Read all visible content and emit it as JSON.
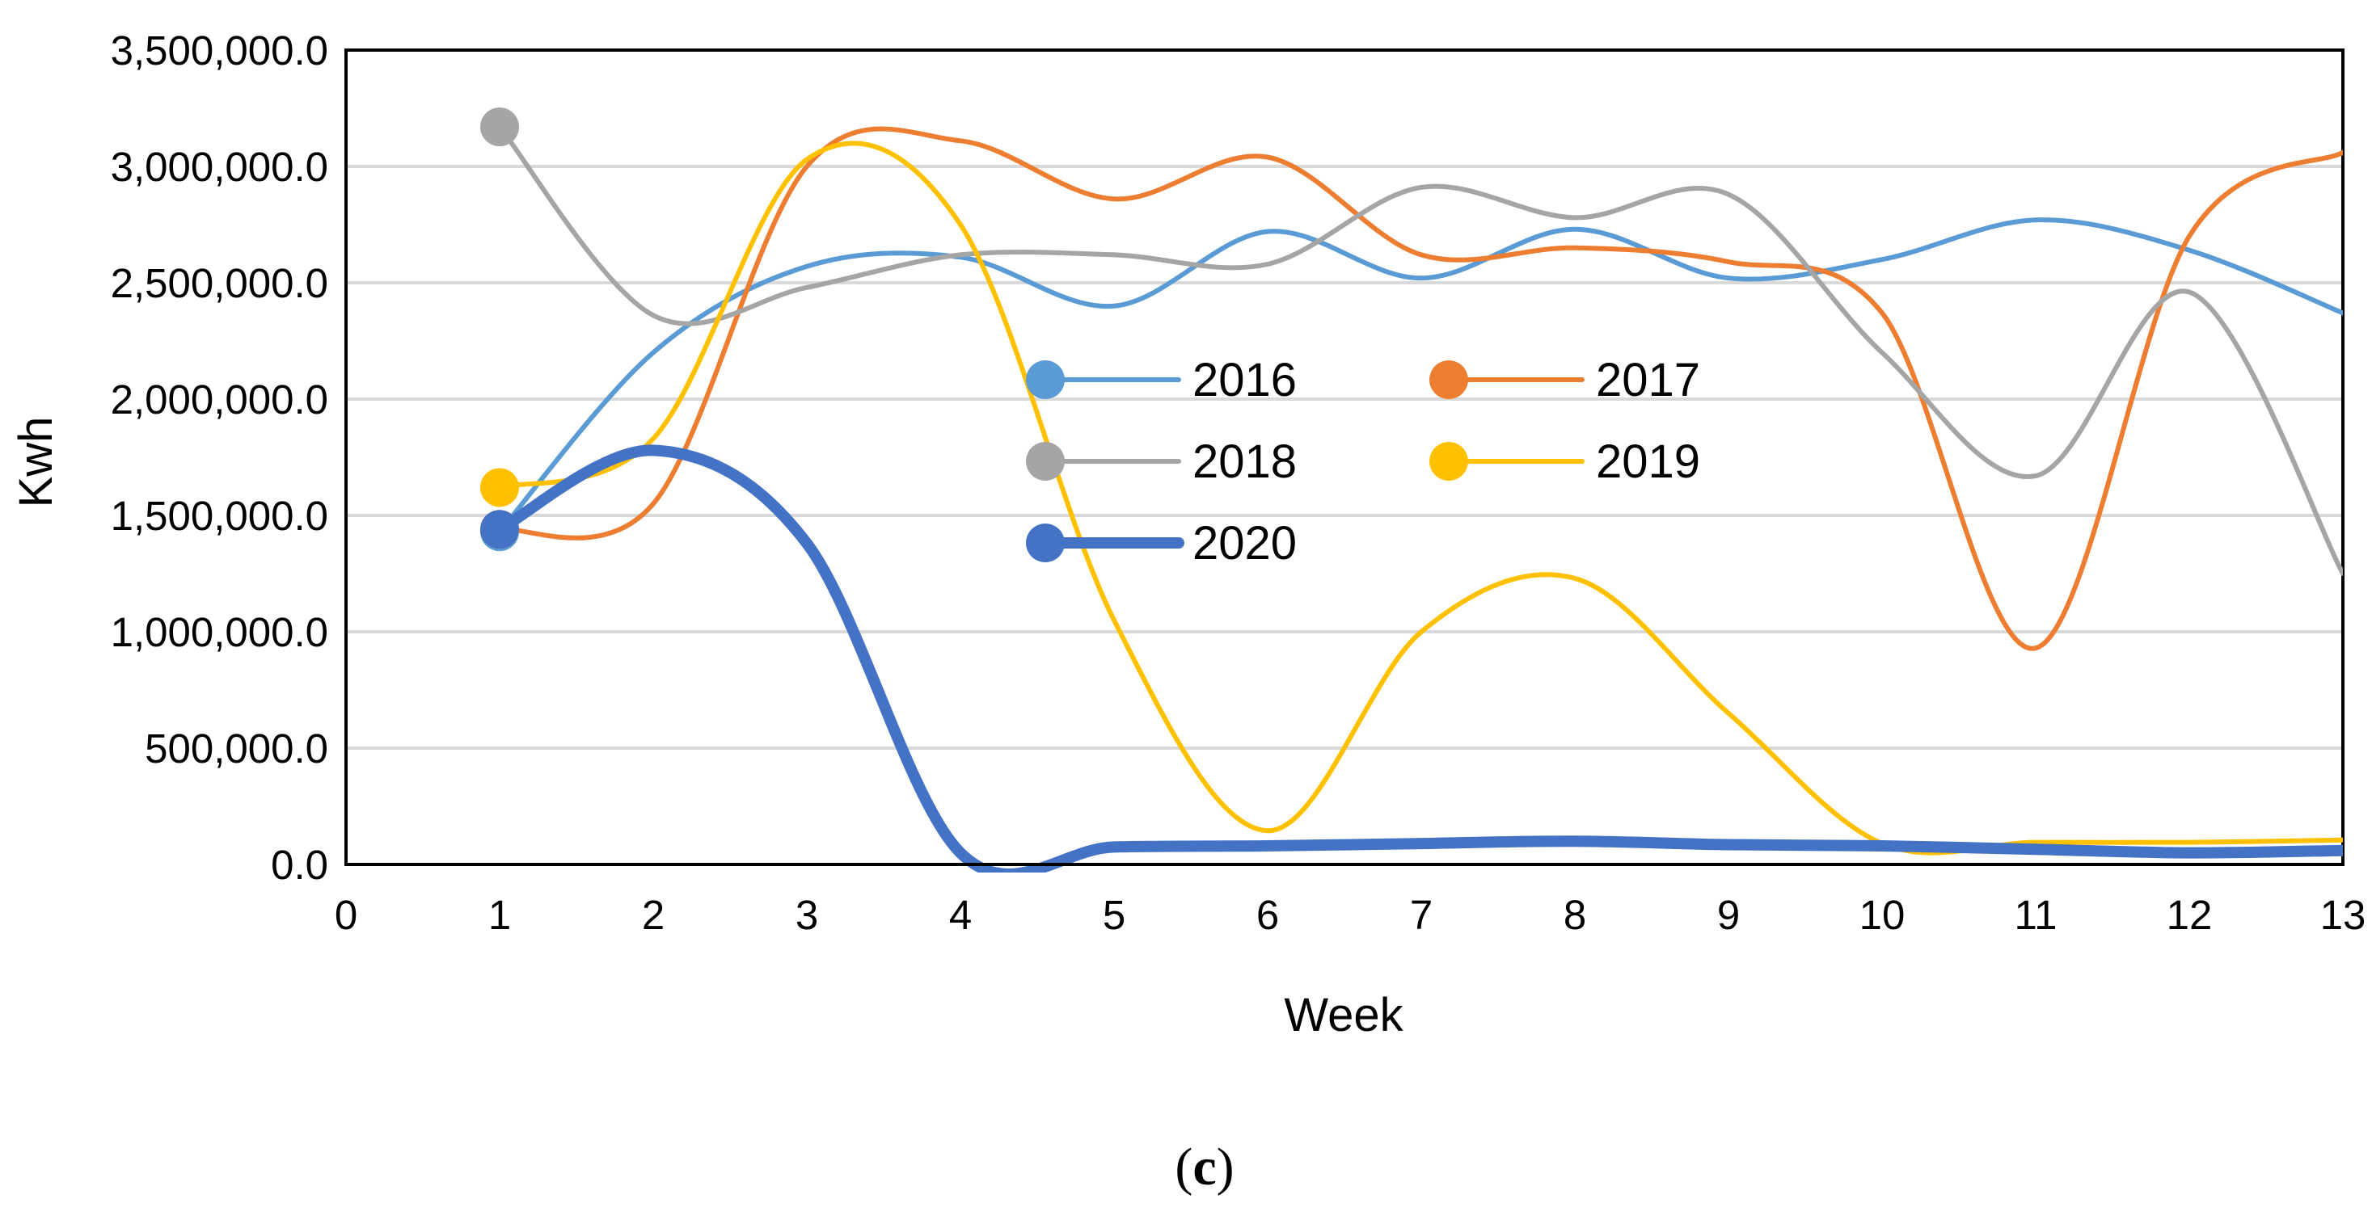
{
  "chart_data": {
    "type": "line",
    "title": "",
    "xlabel": "Week",
    "ylabel": "Kwh",
    "caption_open": "(",
    "caption_letter": "c",
    "caption_close": ")",
    "xlim": [
      0,
      13
    ],
    "ylim": [
      0,
      3500000
    ],
    "xticks": [
      "0",
      "1",
      "2",
      "3",
      "4",
      "5",
      "6",
      "7",
      "8",
      "9",
      "10",
      "11",
      "12",
      "13"
    ],
    "yticks": [
      "0.0",
      "500,000.0",
      "1,000,000.0",
      "1,500,000.0",
      "2,000,000.0",
      "2,500,000.0",
      "3,000,000.0",
      "3,500,000.0"
    ],
    "grid": true,
    "legend_position": "center",
    "x": [
      1,
      2,
      3,
      4,
      5,
      6,
      7,
      8,
      9,
      10,
      11,
      12,
      13
    ],
    "series": [
      {
        "name": "2016",
        "color": "#5B9BD5",
        "values": [
          1430000,
          2200000,
          2570000,
          2610000,
          2400000,
          2720000,
          2520000,
          2730000,
          2520000,
          2600000,
          2770000,
          2640000,
          2370000
        ]
      },
      {
        "name": "2017",
        "color": "#ED7D31",
        "values": [
          1440000,
          1550000,
          3000000,
          3110000,
          2860000,
          3040000,
          2620000,
          2650000,
          2590000,
          2370000,
          930000,
          2700000,
          3060000
        ]
      },
      {
        "name": "2018",
        "color": "#A5A5A5",
        "values": [
          3170000,
          2360000,
          2480000,
          2620000,
          2620000,
          2580000,
          2910000,
          2780000,
          2880000,
          2200000,
          1670000,
          2460000,
          1250000
        ]
      },
      {
        "name": "2019",
        "color": "#FFC000",
        "values": [
          1620000,
          1830000,
          3030000,
          2750000,
          1050000,
          145000,
          1000000,
          1230000,
          650000,
          90000,
          95000,
          95000,
          105000
        ]
      },
      {
        "name": "2020",
        "color": "#4472C4",
        "values": [
          1440000,
          1780000,
          1380000,
          50000,
          75000,
          80000,
          90000,
          100000,
          85000,
          80000,
          65000,
          50000,
          60000
        ]
      }
    ]
  }
}
